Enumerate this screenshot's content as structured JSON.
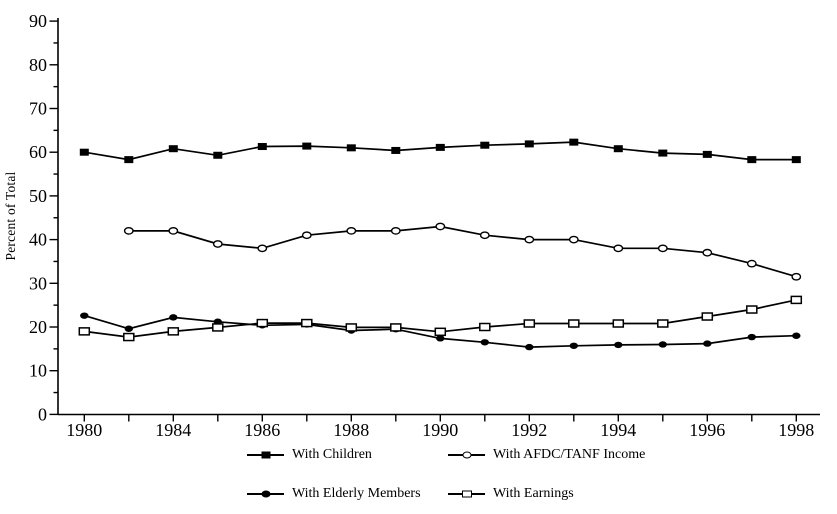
{
  "figure": {
    "background": "#ffffff",
    "ink_color": "#000000"
  },
  "chart_data": {
    "type": "line",
    "title": "",
    "xlabel": "",
    "ylabel": "Percent of Total",
    "ylim": [
      0,
      90
    ],
    "y_tick_step": 10,
    "y_minor_tick_step": 5,
    "grid": false,
    "categories": [
      "1980",
      "1982",
      "1984",
      "1985",
      "1986",
      "1987",
      "1988",
      "1989",
      "1990",
      "1991",
      "1992",
      "1993",
      "1994",
      "1995",
      "1996",
      "1997",
      "1998"
    ],
    "x_axis_labels_shown": [
      "1980",
      "1984",
      "1986",
      "1988",
      "1990",
      "1992",
      "1994",
      "1996",
      "1998"
    ],
    "series": [
      {
        "name": "With Children",
        "marker": "filled-square",
        "values": [
          60,
          58.3,
          60.8,
          59.3,
          61.3,
          61.4,
          61,
          60.4,
          61.1,
          61.6,
          61.9,
          62.3,
          60.8,
          59.8,
          59.5,
          58.3,
          58.3
        ]
      },
      {
        "name": "With AFDC/TANF Income",
        "marker": "open-circle",
        "values": [
          null,
          42,
          42,
          39,
          38,
          41,
          42,
          42,
          43,
          41,
          40,
          40,
          38,
          38,
          37,
          34.5,
          31.5
        ]
      },
      {
        "name": "With Elderly Members",
        "marker": "filled-circle",
        "values": [
          22.6,
          19.6,
          22.2,
          21.2,
          20.4,
          20.6,
          19.2,
          19.5,
          17.4,
          16.5,
          15.4,
          15.7,
          15.9,
          16,
          16.2,
          17.7,
          18
        ]
      },
      {
        "name": "With Earnings",
        "marker": "open-square",
        "values": [
          19,
          17.7,
          19,
          19.9,
          20.9,
          20.9,
          19.9,
          19.9,
          18.9,
          20,
          20.8,
          20.8,
          20.8,
          20.8,
          22.4,
          24,
          26.2
        ]
      }
    ],
    "legend": {
      "position": "bottom",
      "entries": [
        "With Children",
        "With AFDC/TANF Income",
        "With Elderly Members",
        "With Earnings"
      ]
    }
  }
}
